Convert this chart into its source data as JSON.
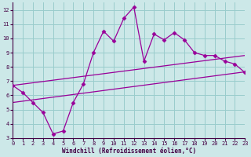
{
  "xlabel": "Windchill (Refroidissement éolien,°C)",
  "bg_color": "#cce8e8",
  "line_color": "#990099",
  "grid_color": "#99cccc",
  "x_main": [
    0,
    1,
    2,
    3,
    4,
    5,
    6,
    7,
    8,
    9,
    10,
    11,
    12,
    13,
    14,
    15,
    16,
    17,
    18,
    19,
    20,
    21,
    22,
    23
  ],
  "y_main": [
    6.7,
    6.2,
    5.5,
    4.8,
    3.3,
    3.5,
    5.5,
    6.8,
    9.0,
    10.5,
    9.8,
    11.4,
    12.2,
    8.4,
    10.3,
    9.9,
    10.4,
    9.9,
    9.0,
    8.8,
    8.8,
    8.4,
    8.2,
    7.6
  ],
  "upper_start": 6.7,
  "upper_end": 8.8,
  "lower_start": 5.5,
  "lower_end": 7.65,
  "xlim": [
    0,
    23
  ],
  "ylim": [
    3,
    12.5
  ],
  "yticks": [
    3,
    4,
    5,
    6,
    7,
    8,
    9,
    10,
    11,
    12
  ],
  "xticks": [
    0,
    1,
    2,
    3,
    4,
    5,
    6,
    7,
    8,
    9,
    10,
    11,
    12,
    13,
    14,
    15,
    16,
    17,
    18,
    19,
    20,
    21,
    22,
    23
  ],
  "marker": "D",
  "marker_size": 2.5
}
